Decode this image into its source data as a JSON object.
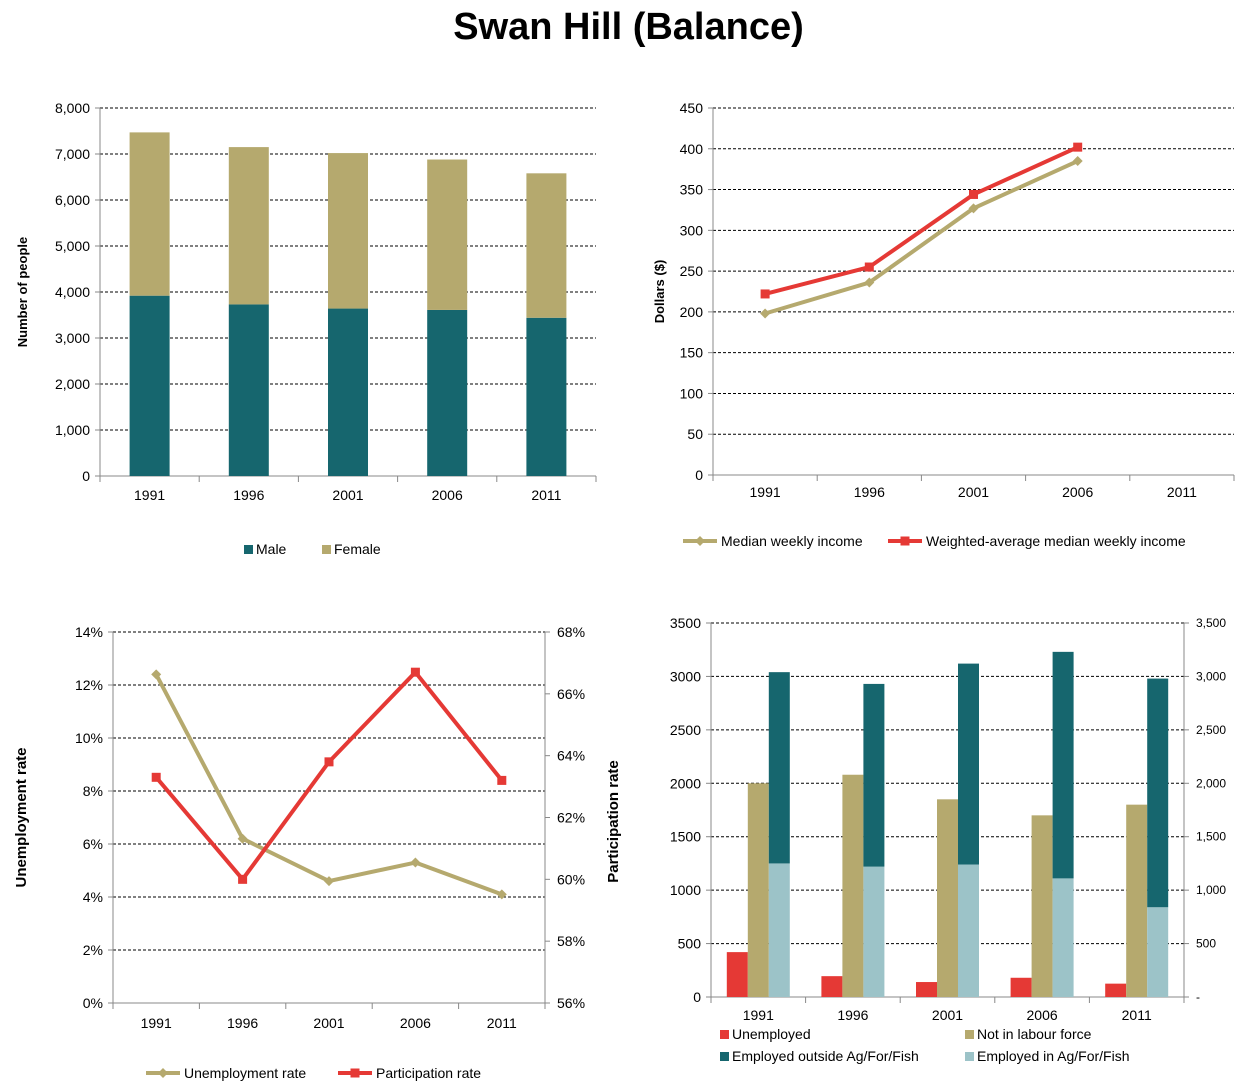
{
  "page": {
    "title": "Swan Hill (Balance)"
  },
  "colors": {
    "teal": "#16666E",
    "khaki": "#B5A96E",
    "red": "#E53935",
    "light_teal": "#9CC3C8",
    "grid": "#000000"
  },
  "chart_data": [
    {
      "id": "population",
      "type": "bar",
      "stacked": true,
      "categories": [
        "1991",
        "1996",
        "2001",
        "2006",
        "2011"
      ],
      "series": [
        {
          "name": "Male",
          "values": [
            3920,
            3730,
            3640,
            3610,
            3440
          ],
          "color": "#16666E"
        },
        {
          "name": "Female",
          "values": [
            3550,
            3420,
            3380,
            3270,
            3140
          ],
          "color": "#B5A96E"
        }
      ],
      "ylabel": "Number of people",
      "ylim": [
        0,
        8000
      ],
      "yticks": [
        "0",
        "1,000",
        "2,000",
        "3,000",
        "4,000",
        "5,000",
        "6,000",
        "7,000",
        "8,000"
      ],
      "grid": true,
      "legend": "bottom"
    },
    {
      "id": "income",
      "type": "line",
      "categories": [
        "1991",
        "1996",
        "2001",
        "2006",
        "2011"
      ],
      "series": [
        {
          "name": "Median weekly income",
          "values": [
            198,
            236,
            327,
            385,
            null
          ],
          "color": "#B5A96E",
          "marker": "diamond"
        },
        {
          "name": "Weighted-average median weekly income",
          "values": [
            222,
            255,
            344,
            402,
            null
          ],
          "color": "#E53935",
          "marker": "square"
        }
      ],
      "ylabel": "Dollars ($)",
      "ylim": [
        0,
        450
      ],
      "yticks": [
        "0",
        "50",
        "100",
        "150",
        "200",
        "250",
        "300",
        "350",
        "400",
        "450"
      ],
      "grid": true,
      "legend": "bottom"
    },
    {
      "id": "rates",
      "type": "line",
      "categories": [
        "1991",
        "1996",
        "2001",
        "2006",
        "2011"
      ],
      "series": [
        {
          "name": "Unemployment rate",
          "axis": "left",
          "values": [
            12.4,
            6.2,
            4.6,
            5.3,
            4.1
          ],
          "color": "#B5A96E",
          "marker": "diamond"
        },
        {
          "name": "Participation rate",
          "axis": "right",
          "values": [
            63.3,
            60.0,
            63.8,
            66.7,
            63.2
          ],
          "color": "#E53935",
          "marker": "square"
        }
      ],
      "ylabel": "Unemployment rate",
      "y2label": "Participation rate",
      "ylim": [
        0,
        14
      ],
      "y2lim": [
        56,
        68
      ],
      "yticks": [
        "0%",
        "2%",
        "4%",
        "6%",
        "8%",
        "10%",
        "12%",
        "14%"
      ],
      "y2ticks": [
        "56%",
        "58%",
        "60%",
        "62%",
        "64%",
        "66%",
        "68%"
      ],
      "grid": true,
      "legend": "bottom"
    },
    {
      "id": "labour",
      "type": "bar",
      "categories": [
        "1991",
        "1996",
        "2001",
        "2006",
        "2011"
      ],
      "series": [
        {
          "name": "Unemployed",
          "values": [
            420,
            195,
            140,
            180,
            125
          ],
          "color": "#E53935"
        },
        {
          "name": "Not in labour force",
          "values": [
            2000,
            2080,
            1850,
            1700,
            1800
          ],
          "color": "#B5A96E"
        },
        {
          "name": "Employed in Ag/For/Fish",
          "values": [
            1250,
            1220,
            1240,
            1110,
            840
          ],
          "color": "#9CC3C8"
        },
        {
          "name": "Employed outside Ag/For/Fish",
          "values": [
            1790,
            1710,
            1880,
            2120,
            2140
          ],
          "color": "#16666E"
        }
      ],
      "stack_note": "Employed in and outside Ag/For/Fish stacked in one bar",
      "ylim": [
        0,
        3500
      ],
      "yticks": [
        "0",
        "500",
        "1000",
        "1500",
        "2000",
        "2500",
        "3000",
        "3500"
      ],
      "y2ticks": [
        "-",
        "500",
        "1,000",
        "1,500",
        "2,000",
        "2,500",
        "3,000",
        "3,500"
      ],
      "grid": true,
      "legend": "bottom",
      "legend_order": [
        "Unemployed",
        "Not in labour force",
        "Employed outside Ag/For/Fish",
        "Employed in Ag/For/Fish"
      ]
    }
  ]
}
